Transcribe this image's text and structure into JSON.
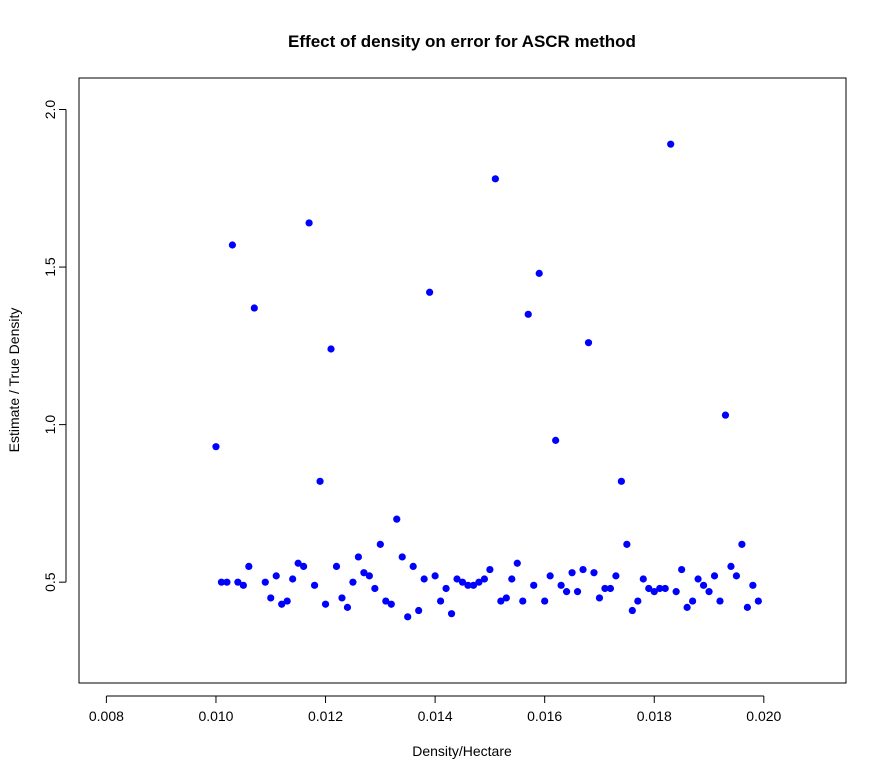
{
  "chart_data": {
    "type": "scatter",
    "title": "Effect of density on error for ASCR method",
    "xlabel": "Density/Hectare",
    "ylabel": "Estimate / True Density",
    "xlim": [
      0.0075,
      0.0215
    ],
    "ylim": [
      0.18,
      2.1
    ],
    "x_ticks": [
      "0.008",
      "0.010",
      "0.012",
      "0.014",
      "0.016",
      "0.018",
      "0.020"
    ],
    "x_tick_values": [
      0.008,
      0.01,
      0.012,
      0.014,
      0.016,
      0.018,
      0.02
    ],
    "y_ticks": [
      "0.5",
      "1.0",
      "1.5",
      "2.0"
    ],
    "y_tick_values": [
      0.5,
      1.0,
      1.5,
      2.0
    ],
    "point_color": "#0000ff",
    "grid": false,
    "x": [
      0.01,
      0.0101,
      0.0102,
      0.0103,
      0.0104,
      0.0105,
      0.0106,
      0.0107,
      0.0109,
      0.011,
      0.0111,
      0.0112,
      0.0113,
      0.0114,
      0.0115,
      0.0116,
      0.0117,
      0.0118,
      0.0119,
      0.012,
      0.0121,
      0.0122,
      0.0123,
      0.0124,
      0.0125,
      0.0126,
      0.0127,
      0.0128,
      0.0129,
      0.013,
      0.0131,
      0.0132,
      0.0133,
      0.0134,
      0.0135,
      0.0136,
      0.0137,
      0.0138,
      0.0139,
      0.014,
      0.0141,
      0.0142,
      0.0143,
      0.0144,
      0.0145,
      0.0146,
      0.0147,
      0.0148,
      0.0149,
      0.015,
      0.0151,
      0.0152,
      0.0153,
      0.0154,
      0.0155,
      0.0156,
      0.0157,
      0.0158,
      0.0159,
      0.016,
      0.0161,
      0.0162,
      0.0163,
      0.0164,
      0.0165,
      0.0166,
      0.0167,
      0.0168,
      0.0169,
      0.017,
      0.0171,
      0.0172,
      0.0173,
      0.0174,
      0.0175,
      0.0176,
      0.0177,
      0.0178,
      0.0179,
      0.018,
      0.0181,
      0.0182,
      0.0183,
      0.0184,
      0.0185,
      0.0186,
      0.0187,
      0.0188,
      0.0189,
      0.019,
      0.0191,
      0.0192,
      0.0193,
      0.0194,
      0.0195,
      0.0196,
      0.0197,
      0.0198,
      0.0199
    ],
    "y": [
      0.93,
      0.5,
      0.5,
      1.57,
      0.5,
      0.49,
      0.55,
      1.37,
      0.5,
      0.45,
      0.52,
      0.43,
      0.44,
      0.51,
      0.56,
      0.55,
      1.64,
      0.49,
      0.82,
      0.43,
      1.24,
      0.55,
      0.45,
      0.42,
      0.5,
      0.58,
      0.53,
      0.52,
      0.48,
      0.62,
      0.44,
      0.43,
      0.7,
      0.58,
      0.39,
      0.55,
      0.41,
      0.51,
      1.42,
      0.52,
      0.44,
      0.48,
      0.4,
      0.51,
      0.5,
      0.49,
      0.49,
      0.5,
      0.51,
      0.54,
      1.78,
      0.44,
      0.45,
      0.51,
      0.56,
      0.44,
      1.35,
      0.49,
      1.48,
      0.44,
      0.52,
      0.95,
      0.49,
      0.47,
      0.53,
      0.47,
      0.54,
      1.26,
      0.53,
      0.45,
      0.48,
      0.48,
      0.52,
      0.82,
      0.62,
      0.41,
      0.44,
      0.51,
      0.48,
      0.47,
      0.48,
      0.48,
      1.89,
      0.47,
      0.54,
      0.42,
      0.44,
      0.51,
      0.49,
      0.47,
      0.52,
      0.44,
      1.03,
      0.55,
      0.52,
      0.62,
      0.42,
      0.49,
      0.44
    ]
  }
}
